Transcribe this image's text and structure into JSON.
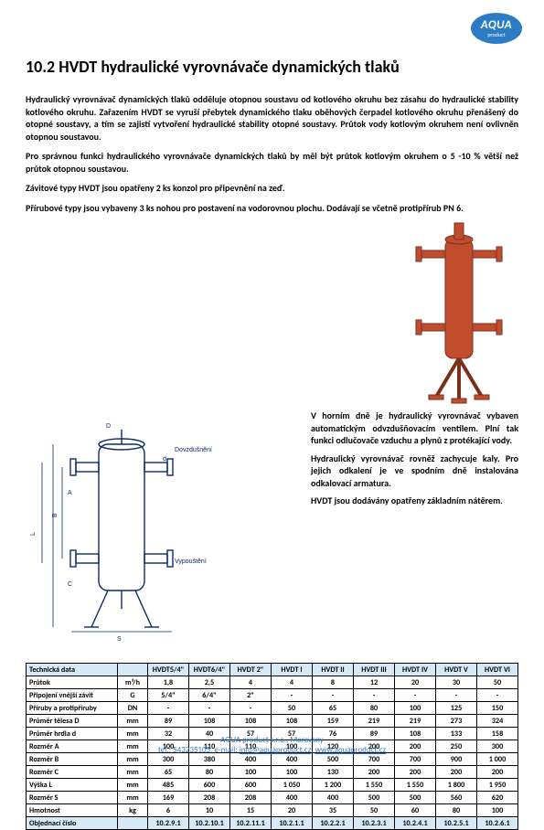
{
  "logo": {
    "main": "AQUA",
    "sub": "product"
  },
  "title": "10.2 HVDT hydraulické vyrovnávače dynamických tlaků",
  "para1": "Hydraulický vyrovnávač dynamických tlaků odděluje otopnou soustavu od kotlového okruhu bez zásahu do hydraulické stability kotlového okruhu. Zařazením HVDT se vyruší přebytek dynamického tlaku oběhových čerpadel kotlového okruhu přenášený do otopné soustavy, a tím se zajistí vytvoření hydraulické stability otopné soustavy. Průtok vody kotlovým okruhem není ovlivněn otopnou soustavou.",
  "para2": "Pro správnou funkci hydraulického vyrovnávače dynamických tlaků by měl být průtok kotlovým okruhem o 5 -10 % větší než průtok otopnou soustavou.",
  "para3": "Závitové typy HVDT jsou opatřeny 2 ks konzol pro připevnění na zeď.",
  "para4": "Přírubové typy jsou vybaveny 3 ks nohou pro postavení na vodorovnou plochu. Dodávají se včetně protipřírub PN 6.",
  "right1": "V horním dně je hydraulický vyrovnávač vybaven automatickým odvzdušňovacím ventilem. Plní tak funkci odlučovače vzduchu a plynů z protékající vody.",
  "right2": "Hydraulický vyrovnávač rovněž zachycuje kaly. Pro jejich odkalení je ve spodním dně instalována odkalovací armatura.",
  "right3": "HVDT jsou dodávány opatřeny základním nátěrem.",
  "diagram_labels": {
    "top": "Dovzdušnění",
    "bottom": "Vypouštění"
  },
  "product_color": "#c14d2e",
  "table": {
    "header_label": "Technická data",
    "cols": [
      "HVDT5/4\"",
      "HVDT6/4\"",
      "HVDT 2\"",
      "HVDT I",
      "HVDT II",
      "HVDT III",
      "HVDT IV",
      "HVDT V",
      "HVDT VI"
    ],
    "rows": [
      {
        "label": "Průtok",
        "unit": "m³/h",
        "vals": [
          "1,8",
          "2,5",
          "4",
          "4",
          "8",
          "12",
          "20",
          "30",
          "50"
        ]
      },
      {
        "label": "Připojení vnější závit",
        "unit": "G",
        "vals": [
          "5/4\"",
          "6/4\"",
          "2\"",
          "-",
          "-",
          "-",
          "-",
          "-",
          "-"
        ]
      },
      {
        "label": "Příruby a protipříruby",
        "unit": "DN",
        "vals": [
          "-",
          "-",
          "-",
          "50",
          "65",
          "80",
          "100",
          "125",
          "150"
        ]
      },
      {
        "label": "Průměr tělesa D",
        "unit": "mm",
        "vals": [
          "89",
          "108",
          "108",
          "108",
          "159",
          "219",
          "219",
          "273",
          "324"
        ]
      },
      {
        "label": "Průměr hrdla d",
        "unit": "mm",
        "vals": [
          "32",
          "40",
          "57",
          "57",
          "76",
          "89",
          "108",
          "133",
          "158"
        ]
      },
      {
        "label": "Rozměr A",
        "unit": "mm",
        "vals": [
          "100",
          "110",
          "110",
          "100",
          "120",
          "200",
          "200",
          "250",
          "300"
        ]
      },
      {
        "label": "Rozměr B",
        "unit": "mm",
        "vals": [
          "300",
          "380",
          "400",
          "400",
          "500",
          "700",
          "700",
          "900",
          "1 000"
        ]
      },
      {
        "label": "Rozměr C",
        "unit": "mm",
        "vals": [
          "65",
          "80",
          "100",
          "100",
          "130",
          "200",
          "200",
          "200",
          "200"
        ]
      },
      {
        "label": "Výška L",
        "unit": "mm",
        "vals": [
          "485",
          "600",
          "600",
          "1 050",
          "1 200",
          "1 550",
          "1 550",
          "1 800",
          "1 950"
        ]
      },
      {
        "label": "Rozměr S",
        "unit": "mm",
        "vals": [
          "169",
          "208",
          "208",
          "400",
          "400",
          "500",
          "500",
          "560",
          "620"
        ]
      },
      {
        "label": "Hmotnost",
        "unit": "kg",
        "vals": [
          "6",
          "10",
          "15",
          "20",
          "35",
          "50",
          "60",
          "80",
          "100"
        ]
      }
    ],
    "footer_label": "Objednací číslo",
    "footer_vals": [
      "10.2.9.1",
      "10.2.10.1",
      "10.2.11.1",
      "10.2.1.1",
      "10.2.2.1",
      "10.2.3.1",
      "10.2.4.1",
      "10.2.5.1",
      "10.2.6.1"
    ]
  },
  "footer": {
    "line1": "AQUA  product s.r.o., Moravany",
    "line2_pre": "tel.: 543235105, e-mail: ",
    "email": "info@aquaproduct.cz",
    "sep": ", ",
    "url": "www.aquaproduct.cz"
  }
}
